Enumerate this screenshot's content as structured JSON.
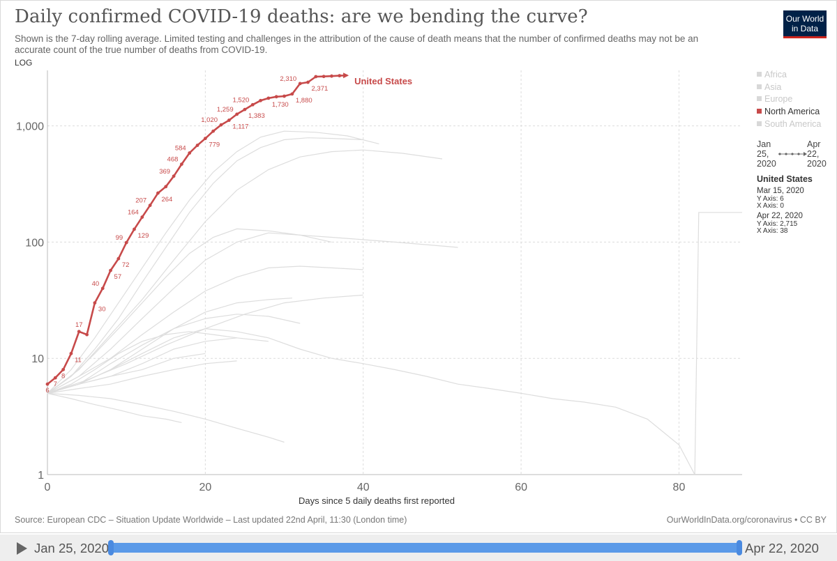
{
  "header": {
    "title": "Daily confirmed COVID-19 deaths: are we bending the curve?",
    "subtitle": "Shown is the 7-day rolling average. Limited testing and challenges in the attribution of the cause of death means that the number of confirmed deaths may not be an accurate count of the true number of deaths from COVID-19.",
    "log_toggle": "LOG",
    "logo_line1": "Our World",
    "logo_line2": "in Data"
  },
  "legend": {
    "items": [
      {
        "label": "Africa",
        "active": false
      },
      {
        "label": "Asia",
        "active": false
      },
      {
        "label": "Europe",
        "active": false
      },
      {
        "label": "North America",
        "active": true
      },
      {
        "label": "South America",
        "active": false
      }
    ]
  },
  "range_indicator": {
    "start": [
      "Jan",
      "25,",
      "2020"
    ],
    "end": [
      "Apr",
      "22,",
      "2020"
    ]
  },
  "hover": {
    "country": "United States",
    "entries": [
      {
        "date": "Mar 15, 2020",
        "y": "Y Axis: 6",
        "x": "X Axis: 0"
      },
      {
        "date": "Apr 22, 2020",
        "y": "Y Axis: 2,715",
        "x": "X Axis: 38"
      }
    ]
  },
  "footer": {
    "source": "Source: European CDC – Situation Update Worldwide – Last updated 22nd April, 11:30 (London time)",
    "credit": "OurWorldInData.org/coronavirus • CC BY"
  },
  "timeline": {
    "start_label": "Jan 25, 2020",
    "end_label": "Apr 22, 2020"
  },
  "colors": {
    "highlight": "#c74a4a",
    "background_series": "#dddddd",
    "timeline_accent": "#5b9ae8"
  },
  "chart_data": {
    "type": "line",
    "title": "Daily confirmed COVID-19 deaths: are we bending the curve?",
    "xlabel": "Days since 5 daily deaths first reported",
    "ylabel": "",
    "yscale": "log",
    "xlim": [
      0,
      88
    ],
    "ylim": [
      1,
      3000
    ],
    "x_ticks": [
      0,
      20,
      40,
      60,
      80
    ],
    "x_tick_labels": [
      "0",
      "20",
      "40",
      "60",
      "80"
    ],
    "y_ticks": [
      1,
      10,
      100,
      1000
    ],
    "y_tick_labels": [
      "1",
      "10",
      "100",
      "1,000"
    ],
    "grid": true,
    "series": [
      {
        "name": "United States",
        "highlight": true,
        "x": [
          0,
          1,
          2,
          3,
          4,
          5,
          6,
          7,
          8,
          9,
          10,
          11,
          12,
          13,
          14,
          15,
          16,
          17,
          18,
          19,
          20,
          21,
          22,
          23,
          24,
          25,
          26,
          27,
          28,
          29,
          30,
          31,
          32,
          33,
          34,
          35,
          36,
          37,
          38
        ],
        "y": [
          6,
          6.8,
          8,
          11,
          17,
          16,
          30,
          40,
          57,
          72,
          99,
          129,
          164,
          207,
          264,
          300,
          369,
          468,
          584,
          680,
          779,
          900,
          1020,
          1117,
          1259,
          1383,
          1520,
          1650,
          1730,
          1780,
          1800,
          1880,
          2310,
          2371,
          2650,
          2660,
          2680,
          2700,
          2715
        ],
        "labels": [
          {
            "x": 0,
            "y": 6,
            "text": "6",
            "pos": "below"
          },
          {
            "x": 1,
            "y": 6.8,
            "text": "7",
            "pos": "below"
          },
          {
            "x": 2,
            "y": 8,
            "text": "8",
            "pos": "below"
          },
          {
            "x": 3,
            "y": 11,
            "text": "11",
            "pos": "right"
          },
          {
            "x": 4,
            "y": 17,
            "text": "17",
            "pos": "above"
          },
          {
            "x": 6,
            "y": 30,
            "text": "30",
            "pos": "right"
          },
          {
            "x": 7,
            "y": 40,
            "text": "40",
            "pos": "left"
          },
          {
            "x": 8,
            "y": 57,
            "text": "57",
            "pos": "right"
          },
          {
            "x": 9,
            "y": 72,
            "text": "72",
            "pos": "right"
          },
          {
            "x": 10,
            "y": 99,
            "text": "99",
            "pos": "left"
          },
          {
            "x": 11,
            "y": 129,
            "text": "129",
            "pos": "right"
          },
          {
            "x": 12,
            "y": 164,
            "text": "164",
            "pos": "left"
          },
          {
            "x": 13,
            "y": 207,
            "text": "207",
            "pos": "left"
          },
          {
            "x": 14,
            "y": 264,
            "text": "264",
            "pos": "right"
          },
          {
            "x": 16,
            "y": 369,
            "text": "369",
            "pos": "left"
          },
          {
            "x": 17,
            "y": 468,
            "text": "468",
            "pos": "left"
          },
          {
            "x": 18,
            "y": 584,
            "text": "584",
            "pos": "left"
          },
          {
            "x": 20,
            "y": 779,
            "text": "779",
            "pos": "right"
          },
          {
            "x": 22,
            "y": 1020,
            "text": "1,020",
            "pos": "left"
          },
          {
            "x": 23,
            "y": 1117,
            "text": "1,117",
            "pos": "right"
          },
          {
            "x": 24,
            "y": 1259,
            "text": "1,259",
            "pos": "left"
          },
          {
            "x": 25,
            "y": 1383,
            "text": "1,383",
            "pos": "right"
          },
          {
            "x": 26,
            "y": 1520,
            "text": "1,520",
            "pos": "left"
          },
          {
            "x": 28,
            "y": 1730,
            "text": "1,730",
            "pos": "right"
          },
          {
            "x": 31,
            "y": 1880,
            "text": "1,880",
            "pos": "right"
          },
          {
            "x": 32,
            "y": 2310,
            "text": "2,310",
            "pos": "left"
          },
          {
            "x": 33,
            "y": 2371,
            "text": "2,371",
            "pos": "right"
          }
        ]
      },
      {
        "name": "",
        "x": [
          0,
          3,
          6,
          9,
          12,
          15,
          18,
          21,
          24,
          27,
          30,
          33,
          36,
          40
        ],
        "y": [
          5,
          7,
          12,
          22,
          45,
          90,
          180,
          320,
          500,
          650,
          760,
          790,
          780,
          760
        ]
      },
      {
        "name": "",
        "x": [
          0,
          3,
          6,
          9,
          12,
          15,
          18,
          21,
          24,
          27,
          30,
          34,
          38,
          42
        ],
        "y": [
          5,
          8,
          15,
          30,
          60,
          120,
          230,
          400,
          600,
          800,
          900,
          880,
          820,
          700
        ]
      },
      {
        "name": "",
        "x": [
          0,
          4,
          8,
          12,
          16,
          20,
          24,
          28,
          32,
          36,
          40,
          45,
          50
        ],
        "y": [
          5,
          8,
          16,
          32,
          70,
          150,
          280,
          420,
          540,
          600,
          620,
          580,
          520
        ]
      },
      {
        "name": "",
        "x": [
          0,
          4,
          8,
          12,
          16,
          20,
          24,
          28,
          32,
          36,
          40,
          44,
          48,
          52
        ],
        "y": [
          5,
          7,
          12,
          22,
          40,
          70,
          100,
          120,
          115,
          110,
          105,
          100,
          95,
          90
        ]
      },
      {
        "name": "",
        "x": [
          0,
          4,
          8,
          12,
          16,
          20,
          24,
          28,
          32,
          36,
          40
        ],
        "y": [
          5,
          7,
          10,
          16,
          25,
          38,
          50,
          60,
          62,
          60,
          58
        ]
      },
      {
        "name": "",
        "x": [
          0,
          4,
          8,
          12,
          16,
          20,
          24,
          28,
          31
        ],
        "y": [
          5,
          6,
          8,
          12,
          18,
          25,
          30,
          32,
          33
        ]
      },
      {
        "name": "",
        "x": [
          0,
          4,
          8,
          12,
          16,
          20,
          24,
          28
        ],
        "y": [
          5,
          6,
          7,
          9,
          12,
          14,
          15,
          14
        ]
      },
      {
        "name": "",
        "x": [
          0,
          4,
          8,
          12,
          16,
          20,
          24
        ],
        "y": [
          5,
          5.5,
          6,
          7,
          8,
          9,
          9.5
        ]
      },
      {
        "name": "",
        "x": [
          0,
          4,
          8,
          12,
          16,
          20
        ],
        "y": [
          5,
          6,
          7,
          8,
          10,
          11
        ]
      },
      {
        "name": "",
        "x": [
          0,
          3,
          6,
          9,
          12,
          15,
          17
        ],
        "y": [
          5,
          4.5,
          4,
          3.6,
          3.2,
          3,
          2.8
        ]
      },
      {
        "name": "",
        "x": [
          0,
          4,
          8,
          12,
          16,
          20,
          24,
          28,
          30
        ],
        "y": [
          5,
          4.8,
          4.5,
          4,
          3.5,
          3,
          2.5,
          2.1,
          1.9
        ]
      },
      {
        "name": "",
        "x": [
          0,
          4,
          8,
          12,
          16,
          20,
          24,
          28,
          32,
          36,
          40,
          44,
          48,
          52,
          56,
          60,
          64,
          68,
          72,
          76,
          80,
          82,
          82.5,
          88
        ],
        "y": [
          5,
          6,
          8,
          11,
          15,
          18,
          17,
          15,
          12,
          10,
          9,
          8,
          7,
          6,
          5.5,
          5,
          4.5,
          4.2,
          3.8,
          3,
          1.8,
          1,
          180,
          180
        ]
      },
      {
        "name": "",
        "x": [
          0,
          3,
          6,
          9,
          12,
          15,
          18,
          21,
          24,
          28,
          32,
          36
        ],
        "y": [
          5,
          7,
          11,
          18,
          30,
          50,
          80,
          110,
          130,
          125,
          115,
          100
        ]
      },
      {
        "name": "",
        "x": [
          0,
          4,
          8,
          12,
          16,
          20,
          24,
          28,
          32
        ],
        "y": [
          5,
          6,
          9,
          13,
          18,
          22,
          24,
          23,
          20
        ]
      },
      {
        "name": "",
        "x": [
          0,
          5,
          10,
          15,
          20,
          25,
          30,
          35,
          40
        ],
        "y": [
          5,
          6.5,
          9,
          13,
          18,
          24,
          30,
          33,
          35
        ]
      },
      {
        "name": "",
        "x": [
          0,
          3,
          6,
          9,
          12,
          15,
          18,
          21,
          24
        ],
        "y": [
          5,
          6,
          8,
          11,
          14,
          16,
          17,
          16,
          15
        ]
      }
    ]
  }
}
